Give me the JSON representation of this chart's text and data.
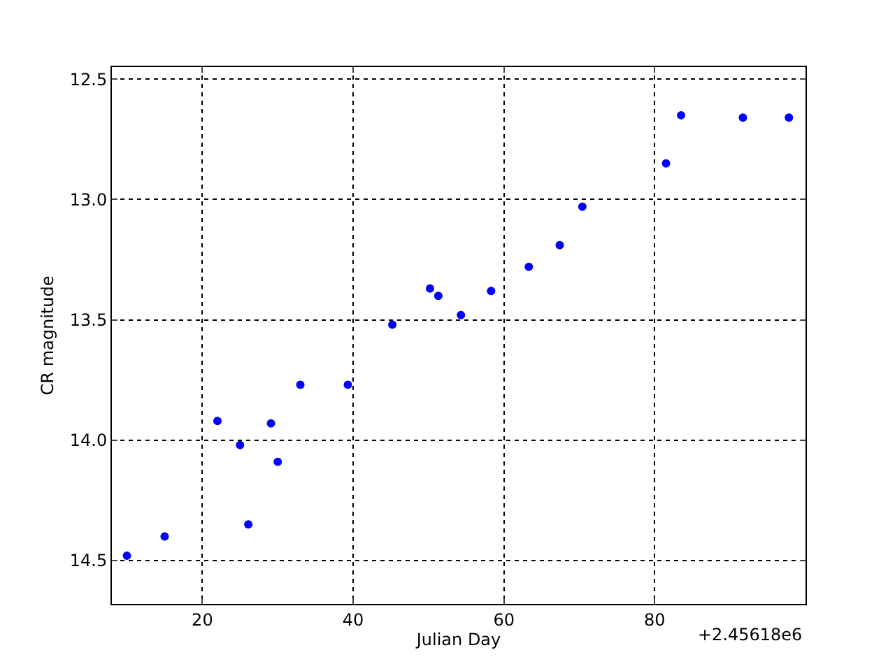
{
  "chart_data": {
    "type": "scatter",
    "xlabel": "Julian Day",
    "ylabel": "CR magnitude",
    "annotations": [
      "+2.45618e6"
    ],
    "x": [
      10,
      15,
      22.0,
      25.0,
      26.1,
      29.1,
      30.0,
      33.0,
      39.3,
      45.2,
      50.2,
      51.3,
      54.3,
      58.3,
      63.3,
      67.4,
      70.4,
      81.5,
      83.5,
      91.7,
      97.8
    ],
    "series": [
      {
        "color": "#0000ff",
        "values": [
          14.48,
          14.4,
          13.92,
          14.02,
          14.35,
          13.93,
          14.09,
          13.77,
          13.77,
          13.52,
          13.37,
          13.4,
          13.48,
          13.38,
          13.28,
          13.19,
          13.03,
          12.85,
          12.65,
          12.66,
          12.66
        ]
      }
    ],
    "xlim": [
      8,
      100
    ],
    "xticks": [
      20,
      40,
      60,
      80
    ],
    "ylim": [
      14.68,
      12.45
    ],
    "yticks": [
      {
        "value": 12.5,
        "label": "12.5"
      },
      {
        "value": 13.0,
        "label": "13.0"
      },
      {
        "value": 13.5,
        "label": "13.5"
      },
      {
        "value": 14.0,
        "label": "14.0"
      },
      {
        "value": 14.5,
        "label": "14.5"
      }
    ],
    "grid": true,
    "marker": "circle"
  }
}
